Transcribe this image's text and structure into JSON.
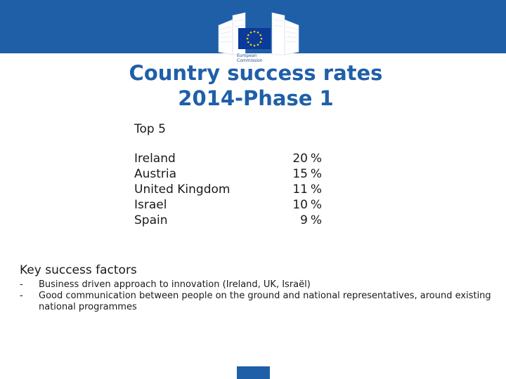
{
  "header": {
    "logo_text_line1": "European",
    "logo_text_line2": "Commission",
    "colors": {
      "band": "#1f5fa8",
      "flag": "#0a3a9a",
      "stars": "#f5d100"
    }
  },
  "title": {
    "line1": "Country success rates",
    "line2": "2014-Phase 1"
  },
  "top5": {
    "heading": "Top 5",
    "rows": [
      {
        "country": "Ireland",
        "rate": "20",
        "unit": "%"
      },
      {
        "country": "Austria",
        "rate": "15",
        "unit": "%"
      },
      {
        "country": "United Kingdom",
        "rate": "11",
        "unit": "%"
      },
      {
        "country": "Israel",
        "rate": "10",
        "unit": "%"
      },
      {
        "country": "Spain",
        "rate": "9",
        "unit": "%"
      }
    ]
  },
  "factors": {
    "heading": "Key success factors",
    "items": [
      {
        "bullet": "-",
        "text": "Business driven approach to innovation (Ireland, UK, Israël)"
      },
      {
        "bullet": "-",
        "text": "Good communication  between people on the ground and national representatives, around existing national programmes"
      }
    ]
  }
}
